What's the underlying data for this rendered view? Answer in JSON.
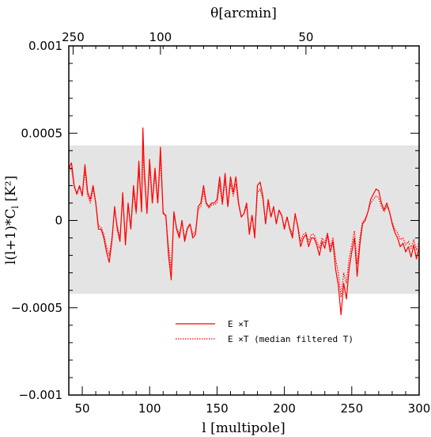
{
  "chart_data": {
    "type": "line",
    "xlabel": "l [multipole]",
    "ylabel": "l(l+1)*C",
    "ylabel_sub": "l",
    "ylabel_unit": " [K²]",
    "top_label": "θ[arcmin]",
    "xlim": [
      40,
      300
    ],
    "ylim": [
      -0.001,
      0.001
    ],
    "x_ticks": [
      50,
      100,
      150,
      200,
      250,
      300
    ],
    "y_ticks": [
      {
        "value": -0.001,
        "label": "−0.001"
      },
      {
        "value": -0.0005,
        "label": "−0.0005"
      },
      {
        "value": 0,
        "label": "0"
      },
      {
        "value": 0.0005,
        "label": "0.0005"
      },
      {
        "value": 0.001,
        "label": "0.001"
      }
    ],
    "top_ticks": [
      {
        "l": 43.2,
        "label": "250"
      },
      {
        "l": 108,
        "label": "100"
      },
      {
        "l": 216,
        "label": "50"
      }
    ],
    "band": {
      "ymin": -0.00042,
      "ymax": 0.00043,
      "color": "#e4e4e4"
    },
    "series": [
      {
        "name": "E ×T",
        "color": "#ff0000",
        "dash": "solid",
        "x": [
          40,
          42,
          44,
          46,
          48,
          50,
          52,
          54,
          56,
          58,
          60,
          62,
          64,
          66,
          68,
          70,
          72,
          74,
          76,
          78,
          80,
          82,
          84,
          86,
          88,
          90,
          92,
          94,
          95,
          96,
          98,
          100,
          102,
          104,
          106,
          108,
          110,
          112,
          114,
          116,
          118,
          120,
          122,
          124,
          126,
          128,
          130,
          132,
          134,
          136,
          138,
          140,
          142,
          144,
          146,
          148,
          150,
          152,
          154,
          156,
          158,
          160,
          162,
          164,
          166,
          168,
          170,
          172,
          174,
          176,
          178,
          180,
          182,
          184,
          186,
          188,
          190,
          192,
          194,
          196,
          198,
          200,
          202,
          204,
          206,
          208,
          210,
          212,
          214,
          216,
          218,
          220,
          222,
          224,
          226,
          228,
          230,
          232,
          234,
          236,
          238,
          240,
          242,
          244,
          246,
          248,
          250,
          252,
          254,
          256,
          258,
          260,
          262,
          264,
          266,
          268,
          270,
          272,
          274,
          276,
          278,
          280,
          282,
          284,
          286,
          288,
          290,
          292,
          294,
          296,
          298,
          300
        ],
        "values": [
          0.0003,
          0.00033,
          0.0002,
          0.00015,
          0.0002,
          0.00014,
          0.00032,
          0.00016,
          0.00012,
          0.0002,
          0.0001,
          -5e-05,
          -5e-05,
          -0.0001,
          -0.00018,
          -0.00024,
          -0.00012,
          8e-05,
          -5e-05,
          -0.00012,
          0.00016,
          -0.00014,
          0.0001,
          -5e-05,
          0.0002,
          5e-05,
          0.00034,
          5e-05,
          0.00053,
          0.0003,
          4e-05,
          0.00035,
          0.0001,
          0.0003,
          0.0001,
          0.00042,
          4e-05,
          3e-05,
          -0.0002,
          -0.00034,
          5e-05,
          -5e-05,
          -0.0001,
          0.0,
          -0.00012,
          -5e-05,
          -2e-05,
          -0.0001,
          -8e-05,
          8e-05,
          0.0001,
          0.0002,
          0.0001,
          8e-05,
          0.0001,
          0.0001,
          0.00012,
          0.00025,
          0.0001,
          0.00027,
          8e-05,
          0.00025,
          0.00016,
          0.00025,
          0.0001,
          2e-05,
          4e-05,
          0.0001,
          -8e-05,
          3e-05,
          -0.0001,
          0.0002,
          0.00022,
          0.00014,
          -2e-05,
          0.00012,
          2e-05,
          8e-05,
          -2e-05,
          6e-05,
          3e-05,
          -5e-05,
          2e-05,
          -5e-05,
          -0.0001,
          4e-05,
          -4e-05,
          -0.00015,
          -0.0001,
          -8e-05,
          -0.00015,
          -0.0001,
          -0.0001,
          -0.00014,
          -0.0002,
          -0.00012,
          -0.00016,
          -8e-05,
          -0.00018,
          -0.00012,
          -0.00028,
          -0.00037,
          -0.00054,
          -0.00036,
          -0.00045,
          -0.00028,
          -0.00018,
          -0.0001,
          -0.00032,
          -0.00014,
          -2e-05,
          0.0,
          5e-05,
          0.00012,
          0.00015,
          0.00018,
          0.00017,
          0.0001,
          6e-05,
          0.0001,
          5e-05,
          -2e-05,
          -7e-05,
          -0.0001,
          -0.00015,
          -0.00013,
          -0.00018,
          -0.00015,
          -0.00021,
          -0.00014,
          -0.00022,
          -0.00015
        ]
      },
      {
        "name": "E ×T (median filtered T)",
        "color": "#ff0000",
        "dash": "dotted",
        "x": [
          40,
          42,
          44,
          46,
          48,
          50,
          52,
          54,
          56,
          58,
          60,
          62,
          64,
          66,
          68,
          70,
          72,
          74,
          76,
          78,
          80,
          82,
          84,
          86,
          88,
          90,
          92,
          94,
          95,
          96,
          98,
          100,
          102,
          104,
          106,
          108,
          110,
          112,
          114,
          116,
          118,
          120,
          122,
          124,
          126,
          128,
          130,
          132,
          134,
          136,
          138,
          140,
          142,
          144,
          146,
          148,
          150,
          152,
          154,
          156,
          158,
          160,
          162,
          164,
          166,
          168,
          170,
          172,
          174,
          176,
          178,
          180,
          182,
          184,
          186,
          188,
          190,
          192,
          194,
          196,
          198,
          200,
          202,
          204,
          206,
          208,
          210,
          212,
          214,
          216,
          218,
          220,
          222,
          224,
          226,
          228,
          230,
          232,
          234,
          236,
          238,
          240,
          242,
          244,
          246,
          248,
          250,
          252,
          254,
          256,
          258,
          260,
          262,
          264,
          266,
          268,
          270,
          272,
          274,
          276,
          278,
          280,
          282,
          284,
          286,
          288,
          290,
          292,
          294,
          296,
          298,
          300
        ],
        "values": [
          0.00028,
          0.0003,
          0.00019,
          0.00016,
          0.00019,
          0.00015,
          0.00028,
          0.00014,
          0.0001,
          0.00018,
          0.0001,
          -3e-05,
          -4e-05,
          -8e-05,
          -0.00015,
          -0.0002,
          -0.0001,
          6e-05,
          -3e-05,
          -0.0001,
          0.00013,
          -0.00011,
          8e-05,
          -3e-05,
          0.00016,
          4e-05,
          0.00028,
          6e-05,
          0.00042,
          0.00025,
          5e-05,
          0.0003,
          0.0001,
          0.00026,
          0.0001,
          0.00036,
          5e-05,
          2e-05,
          -0.00015,
          -0.00028,
          3e-05,
          -4e-05,
          -8e-05,
          -1e-05,
          -0.0001,
          -4e-05,
          -2e-05,
          -8e-05,
          -6e-05,
          6e-05,
          8e-05,
          0.00017,
          9e-05,
          7e-05,
          9e-05,
          9e-05,
          0.0001,
          0.00021,
          9e-05,
          0.00023,
          8e-05,
          0.00021,
          0.00014,
          0.00021,
          9e-05,
          2e-05,
          4e-05,
          8e-05,
          -6e-05,
          3e-05,
          -8e-05,
          0.00016,
          0.00018,
          0.00012,
          -1e-05,
          0.0001,
          2e-05,
          7e-05,
          -1e-05,
          5e-05,
          3e-05,
          -4e-05,
          2e-05,
          -4e-05,
          -8e-05,
          3e-05,
          -3e-05,
          -0.00012,
          -8e-05,
          -7e-05,
          -0.00012,
          -8e-05,
          -8e-05,
          -0.00012,
          -0.00016,
          -0.0001,
          -0.00013,
          -7e-05,
          -0.00015,
          -0.0001,
          -0.00022,
          -0.0003,
          -0.00044,
          -0.0003,
          -0.00036,
          -0.00022,
          -0.00014,
          -6e-05,
          -0.00025,
          -0.0001,
          -1e-05,
          1e-05,
          5e-05,
          0.0001,
          0.00012,
          0.00014,
          0.00013,
          8e-05,
          5e-05,
          8e-05,
          5e-05,
          -1e-05,
          -5e-05,
          -7e-05,
          -0.00011,
          -0.0001,
          -0.00014,
          -0.00012,
          -0.00016,
          -0.00011,
          -0.00017,
          -0.00012
        ]
      }
    ]
  }
}
